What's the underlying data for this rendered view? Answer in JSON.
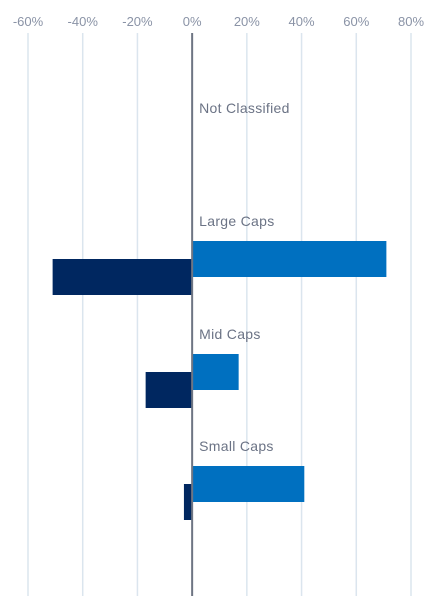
{
  "chart_data": {
    "type": "bar",
    "orientation": "horizontal",
    "categories": [
      "Not Classified",
      "Large Caps",
      "Mid Caps",
      "Small Caps"
    ],
    "series": [
      {
        "values": [
          0,
          71,
          17,
          41
        ],
        "color": "#0070c0"
      },
      {
        "values": [
          0,
          -51,
          -17,
          -3
        ],
        "color": "#002760"
      }
    ],
    "xlim": [
      -60,
      80
    ],
    "xticks": [
      -60,
      -40,
      -20,
      0,
      20,
      40,
      60,
      80
    ],
    "xtick_labels": [
      "-60%",
      "-40%",
      "-20%",
      "0%",
      "20%",
      "40%",
      "60%",
      "80%"
    ],
    "grid": true,
    "legend": "none"
  }
}
